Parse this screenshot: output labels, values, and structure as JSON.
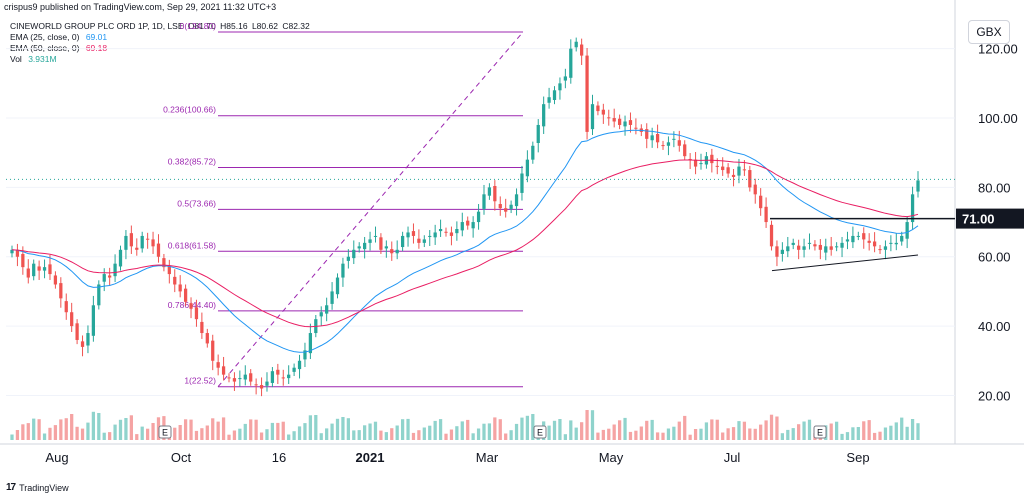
{
  "header": {
    "publisher": "crispus9 published on TradingView.com, Sep 29, 2021 11:32 UTC+3"
  },
  "legend": {
    "symbol": "CINEWORLD GROUP PLC ORD 1P, 1D, LSE",
    "open": "O81.70",
    "high": "H85.16",
    "low": "L80.62",
    "close": "C82.32",
    "ema25_label": "EMA (25, close, 0)",
    "ema25_value": "69.01",
    "ema50_label": "EMA (50, close, 0)",
    "ema50_value": "69.18",
    "vol_label": "Vol",
    "vol_value": "3.931M"
  },
  "currency_label": "GBX",
  "footer": {
    "brand": "TradingView",
    "logo": "17"
  },
  "colors": {
    "up": "#26a69a",
    "down": "#ef5350",
    "ema25": "#2196f3",
    "ema50": "#e91e63",
    "fib": "#9c27b0",
    "vol_up": "#8fd3cc",
    "vol_down": "#f5a3a3"
  },
  "chart_data": {
    "type": "candlestick",
    "y_axis_ticks": [
      20,
      40,
      60,
      80,
      100,
      120
    ],
    "y_axis_labels": [
      "20.00",
      "40.00",
      "60.00",
      "80.00",
      "100.00",
      "120.00"
    ],
    "ylim": [
      6,
      130
    ],
    "x_axis_labels": [
      "Aug",
      "Oct",
      "16",
      "2021",
      "Mar",
      "May",
      "Jul",
      "Sep"
    ],
    "price_tag": "71.00",
    "horizontal_level": 71.0,
    "fib_levels": [
      {
        "label": "0(124.80)",
        "price": 124.8
      },
      {
        "label": "0.236(100.66)",
        "price": 100.66
      },
      {
        "label": "0.382(85.72)",
        "price": 85.72
      },
      {
        "label": "0.5(73.66)",
        "price": 73.66
      },
      {
        "label": "0.618(61.58)",
        "price": 61.58
      },
      {
        "label": "0.786(44.40)",
        "price": 44.4
      },
      {
        "label": "1(22.52)",
        "price": 22.52
      }
    ],
    "last_price": 82.32,
    "event_markers": [
      "E",
      "E",
      "E"
    ],
    "closes": [
      62,
      60,
      57,
      54,
      58,
      56,
      57,
      55,
      52,
      48,
      44,
      40,
      36,
      34,
      38,
      46,
      52,
      55,
      54,
      58,
      62,
      66,
      63,
      62,
      66,
      65,
      63,
      60,
      57,
      55,
      52,
      50,
      47,
      45,
      42,
      38,
      35,
      30,
      28,
      26,
      25,
      24,
      25,
      26,
      24,
      23,
      22,
      24,
      27,
      26,
      25,
      26,
      28,
      30,
      33,
      38,
      42,
      44,
      46,
      50,
      54,
      58,
      60,
      62,
      63,
      64,
      65,
      66,
      62,
      63,
      61,
      62,
      66,
      67,
      66,
      64,
      65,
      66,
      67,
      68,
      67,
      66,
      68,
      70,
      69,
      70,
      73,
      78,
      80,
      76,
      74,
      73,
      75,
      78,
      84,
      88,
      92,
      98,
      104,
      106,
      108,
      110,
      112,
      120,
      122,
      118,
      96,
      104,
      102,
      101,
      100,
      99,
      98,
      99,
      98,
      97,
      96,
      94,
      95,
      93,
      92,
      93,
      94,
      92,
      89,
      88,
      86,
      87,
      89,
      87,
      86,
      85,
      84,
      83,
      86,
      85,
      80,
      78,
      74,
      70,
      63,
      60,
      62,
      63,
      64,
      62,
      63,
      64,
      63,
      62,
      63,
      62,
      63,
      64,
      65,
      66,
      66,
      65,
      64,
      63,
      62,
      63,
      64,
      64,
      66,
      70,
      78,
      82
    ]
  }
}
